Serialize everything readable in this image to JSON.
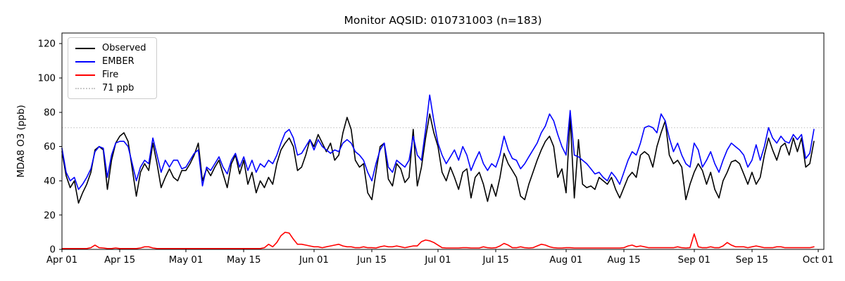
{
  "chart_data": {
    "type": "line",
    "title": "Monitor AQSID: 010731003 (n=183)",
    "xlabel": "",
    "ylabel": "MDA8 O3 (ppb)",
    "ylim": [
      0,
      126.2
    ],
    "xlim_days": [
      0,
      184.4
    ],
    "yticks": [
      0,
      20,
      40,
      60,
      80,
      100,
      120
    ],
    "xticks": [
      {
        "label": "Apr 01",
        "day": 0
      },
      {
        "label": "Apr 15",
        "day": 14
      },
      {
        "label": "May 01",
        "day": 30
      },
      {
        "label": "May 15",
        "day": 44
      },
      {
        "label": "Jun 01",
        "day": 61
      },
      {
        "label": "Jun 15",
        "day": 75
      },
      {
        "label": "Jul 01",
        "day": 91
      },
      {
        "label": "Jul 15",
        "day": 105
      },
      {
        "label": "Aug 01",
        "day": 122
      },
      {
        "label": "Aug 15",
        "day": 136
      },
      {
        "label": "Sep 01",
        "day": 153
      },
      {
        "label": "Sep 15",
        "day": 167
      },
      {
        "label": "Oct 01",
        "day": 183
      }
    ],
    "grid": false,
    "legend_position": "upper left",
    "n_points": 183,
    "date_range": "Apr 01 - Sep 30",
    "threshold": {
      "label": "71 ppb",
      "value": 71,
      "color": "#c9c9c9",
      "style": "dotted"
    },
    "series": [
      {
        "name": "Observed",
        "color": "#000000",
        "style": "solid",
        "values": [
          57,
          43,
          36,
          40,
          27,
          33,
          38,
          45,
          58,
          60,
          58,
          35,
          52,
          62,
          66,
          68,
          63,
          47,
          31,
          45,
          50,
          46,
          62,
          50,
          36,
          42,
          47,
          42,
          40,
          46,
          46,
          50,
          55,
          62,
          40,
          47,
          43,
          48,
          52,
          44,
          36,
          50,
          55,
          44,
          52,
          38,
          45,
          33,
          40,
          36,
          42,
          38,
          50,
          58,
          62,
          65,
          60,
          46,
          48,
          55,
          64,
          60,
          67,
          62,
          57,
          62,
          52,
          55,
          68,
          77,
          70,
          52,
          48,
          50,
          33,
          29,
          45,
          60,
          62,
          41,
          37,
          50,
          47,
          39,
          42,
          70,
          37,
          48,
          65,
          79,
          68,
          60,
          45,
          40,
          48,
          42,
          35,
          45,
          47,
          30,
          42,
          45,
          38,
          28,
          38,
          31,
          42,
          56,
          50,
          46,
          42,
          31,
          29,
          38,
          45,
          52,
          58,
          63,
          66,
          60,
          42,
          47,
          33,
          77,
          30,
          64,
          38,
          36,
          37,
          35,
          42,
          40,
          38,
          42,
          35,
          30,
          36,
          42,
          45,
          42,
          55,
          57,
          55,
          48,
          60,
          68,
          75,
          55,
          50,
          52,
          48,
          29,
          38,
          45,
          50,
          46,
          38,
          45,
          35,
          30,
          40,
          45,
          51,
          52,
          50,
          44,
          38,
          45,
          38,
          42,
          55,
          65,
          58,
          52,
          60,
          62,
          55,
          65,
          57,
          65,
          48,
          50,
          63
        ]
      },
      {
        "name": "EMBER",
        "color": "#0000ff",
        "style": "solid",
        "values": [
          59,
          45,
          40,
          42,
          35,
          38,
          42,
          47,
          57,
          60,
          59,
          42,
          55,
          62,
          63,
          63,
          60,
          50,
          40,
          48,
          52,
          50,
          65,
          55,
          45,
          52,
          48,
          52,
          52,
          47,
          48,
          52,
          56,
          58,
          37,
          48,
          46,
          50,
          54,
          48,
          44,
          52,
          56,
          48,
          54,
          46,
          52,
          45,
          50,
          48,
          52,
          50,
          55,
          62,
          68,
          70,
          65,
          55,
          56,
          60,
          64,
          58,
          64,
          60,
          58,
          56,
          58,
          57,
          62,
          64,
          62,
          57,
          55,
          52,
          45,
          40,
          50,
          58,
          62,
          48,
          45,
          52,
          50,
          48,
          52,
          66,
          55,
          52,
          70,
          90,
          75,
          62,
          55,
          50,
          54,
          58,
          52,
          60,
          55,
          46,
          52,
          57,
          50,
          46,
          50,
          48,
          55,
          66,
          58,
          53,
          52,
          47,
          50,
          54,
          58,
          62,
          68,
          72,
          79,
          75,
          67,
          60,
          55,
          81,
          55,
          54,
          52,
          50,
          47,
          44,
          45,
          42,
          40,
          45,
          42,
          38,
          45,
          52,
          57,
          55,
          62,
          71,
          72,
          71,
          68,
          79,
          75,
          65,
          57,
          62,
          55,
          50,
          48,
          62,
          58,
          48,
          52,
          57,
          50,
          45,
          52,
          58,
          62,
          60,
          58,
          55,
          48,
          52,
          61,
          52,
          60,
          71,
          65,
          62,
          66,
          63,
          62,
          67,
          64,
          67,
          53,
          56,
          70
        ]
      },
      {
        "name": "Fire",
        "color": "#ff0000",
        "style": "solid",
        "values": [
          0.5,
          0.5,
          0.5,
          0.5,
          0.5,
          0.5,
          0.5,
          1,
          2.5,
          1,
          0.8,
          0.5,
          0.5,
          0.8,
          0.5,
          0.5,
          0.5,
          0.5,
          0.5,
          0.8,
          1.5,
          1.5,
          0.8,
          0.5,
          0.5,
          0.5,
          0.5,
          0.5,
          0.5,
          0.5,
          0.5,
          0.5,
          0.5,
          0.5,
          0.5,
          0.5,
          0.5,
          0.5,
          0.5,
          0.5,
          0.5,
          0.5,
          0.5,
          0.5,
          0.5,
          0.5,
          0.5,
          0.5,
          0.5,
          1,
          3,
          1.5,
          4,
          8,
          10,
          9.5,
          6,
          3,
          3,
          2.5,
          2,
          1.5,
          1.5,
          1,
          1.5,
          2,
          2.5,
          3,
          2,
          1.5,
          1.5,
          1,
          1,
          1.5,
          1,
          1,
          0.8,
          1.5,
          2,
          1.5,
          1.5,
          2,
          1.5,
          1,
          1.5,
          2,
          2,
          4.5,
          5.5,
          5,
          4,
          2.5,
          1,
          0.8,
          0.8,
          0.8,
          0.8,
          1,
          1,
          0.8,
          0.8,
          0.8,
          1.5,
          1,
          0.8,
          1,
          2,
          3.5,
          2.5,
          1,
          1,
          1.5,
          1,
          0.8,
          1,
          2,
          3,
          2.5,
          1.5,
          1,
          0.8,
          0.8,
          1,
          1,
          0.8,
          0.8,
          0.8,
          0.8,
          0.8,
          0.8,
          0.8,
          0.8,
          0.8,
          0.8,
          0.8,
          0.8,
          1,
          2,
          2.5,
          1.5,
          2,
          1.5,
          1,
          1,
          1,
          1,
          1,
          1,
          1,
          1.5,
          1,
          0.8,
          1,
          9,
          1.5,
          1,
          1,
          1.5,
          1,
          1,
          2,
          4,
          2.5,
          1.5,
          1.5,
          1.5,
          1,
          1.5,
          2,
          1.5,
          1,
          1,
          1,
          1.5,
          1.5,
          1,
          1,
          1,
          1,
          1,
          1,
          1,
          1.5
        ]
      }
    ],
    "legend": {
      "items": [
        {
          "label": "Observed",
          "color": "#000000",
          "style": "solid"
        },
        {
          "label": "EMBER",
          "color": "#0000ff",
          "style": "solid"
        },
        {
          "label": "Fire",
          "color": "#ff0000",
          "style": "solid"
        },
        {
          "label": "71 ppb",
          "color": "#c9c9c9",
          "style": "dotted"
        }
      ]
    }
  }
}
